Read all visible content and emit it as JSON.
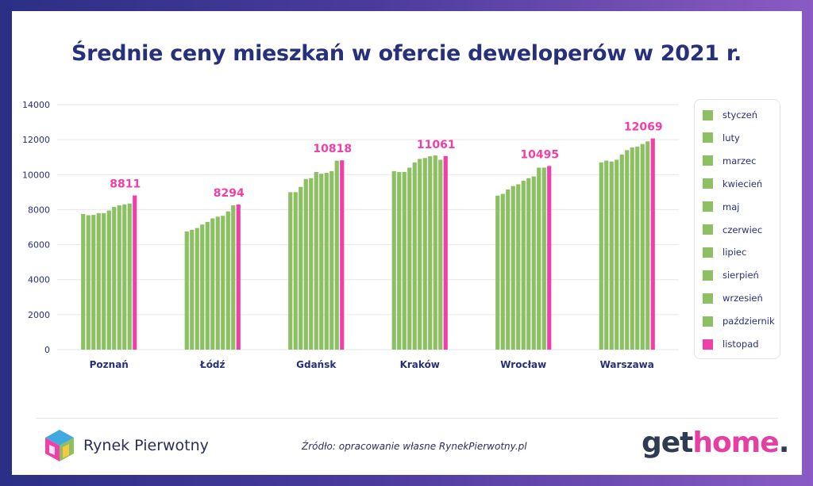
{
  "chart_data": {
    "type": "bar",
    "title": "Średnie ceny mieszkań w ofercie deweloperów w 2021 r.",
    "xlabel": "",
    "ylabel": "",
    "ylim": [
      0,
      14000
    ],
    "yticks": [
      "0",
      "2000",
      "4000",
      "6000",
      "8000",
      "10000",
      "12000",
      "14000"
    ],
    "categories": [
      "Poznań",
      "Łódź",
      "Gdańsk",
      "Kraków",
      "Wrocław",
      "Warszawa"
    ],
    "grid": true,
    "legend_position": "right",
    "series": [
      {
        "name": "styczeń",
        "color": "#8cc063",
        "values": [
          7750,
          6750,
          9000,
          10200,
          8800,
          10700
        ]
      },
      {
        "name": "luty",
        "color": "#8cc063",
        "values": [
          7680,
          6850,
          9000,
          10150,
          8900,
          10800
        ]
      },
      {
        "name": "marzec",
        "color": "#8cc063",
        "values": [
          7700,
          6950,
          9300,
          10150,
          9150,
          10750
        ]
      },
      {
        "name": "kwiecień",
        "color": "#8cc063",
        "values": [
          7800,
          7150,
          9750,
          10400,
          9350,
          10850
        ]
      },
      {
        "name": "maj",
        "color": "#8cc063",
        "values": [
          7800,
          7300,
          9800,
          10700,
          9450,
          11150
        ]
      },
      {
        "name": "czerwiec",
        "color": "#8cc063",
        "values": [
          7950,
          7500,
          10150,
          10900,
          9650,
          11400
        ]
      },
      {
        "name": "lipiec",
        "color": "#8cc063",
        "values": [
          8150,
          7600,
          10050,
          10950,
          9800,
          11550
        ]
      },
      {
        "name": "sierpień",
        "color": "#8cc063",
        "values": [
          8250,
          7650,
          10100,
          11050,
          9900,
          11600
        ]
      },
      {
        "name": "wrzesień",
        "color": "#8cc063",
        "values": [
          8300,
          7900,
          10200,
          11100,
          10400,
          11750
        ]
      },
      {
        "name": "październik",
        "color": "#8cc063",
        "values": [
          8350,
          8250,
          10800,
          10850,
          10400,
          11900
        ]
      },
      {
        "name": "listopad",
        "color": "#f03fa8",
        "values": [
          8811,
          8294,
          10818,
          11061,
          10495,
          12069
        ]
      }
    ],
    "data_labels": [
      "8811",
      "8294",
      "10818",
      "11061",
      "10495",
      "12069"
    ]
  },
  "source": "Źródło: opracowanie własne RynekPierwotny.pl",
  "logo_left": "Rynek Pierwotny",
  "logo_right": {
    "part1": "get",
    "part2": "home",
    "part3": "."
  },
  "colors": {
    "title": "#27307a",
    "green": "#8cc063",
    "pink": "#f03fa8",
    "axis_text": "#27307a"
  }
}
